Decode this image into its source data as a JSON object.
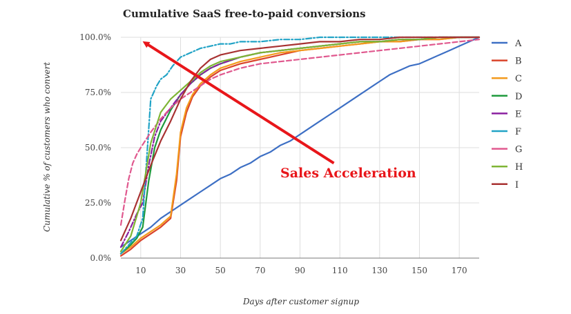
{
  "chart_data": {
    "type": "line",
    "title": "Cumulative SaaS free-to-paid conversions",
    "xlabel": "Days after customer signup",
    "ylabel": "Cumulative % of customers who convert",
    "xlim": [
      0,
      180
    ],
    "ylim": [
      0,
      100
    ],
    "x_ticks": [
      10,
      30,
      50,
      70,
      90,
      110,
      130,
      150,
      170
    ],
    "x_tick_labels": [
      "10",
      "30",
      "50",
      "70",
      "90",
      "110",
      "130",
      "150",
      "170"
    ],
    "y_ticks": [
      0,
      25,
      50,
      75,
      100
    ],
    "y_tick_labels": [
      "0.0%",
      "25.0%",
      "50.0%",
      "75.0%",
      "100.0%"
    ],
    "grid": true,
    "legend": "right",
    "annotation": {
      "text": "Sales Acceleration",
      "color": "#e8161a",
      "arrow_from": [
        107,
        43
      ],
      "arrow_to": [
        13,
        97
      ]
    },
    "series": [
      {
        "name": "A",
        "color": "#3d6fc4",
        "style": "solid",
        "x": [
          0,
          5,
          10,
          15,
          20,
          25,
          30,
          35,
          40,
          45,
          50,
          55,
          60,
          65,
          70,
          75,
          80,
          85,
          90,
          95,
          100,
          105,
          110,
          115,
          120,
          125,
          130,
          135,
          140,
          145,
          150,
          155,
          160,
          165,
          170,
          175,
          180
        ],
        "y": [
          5,
          8,
          11,
          14,
          18,
          21,
          24,
          27,
          30,
          33,
          36,
          38,
          41,
          43,
          46,
          48,
          51,
          53,
          56,
          59,
          62,
          65,
          68,
          71,
          74,
          77,
          80,
          83,
          85,
          87,
          88,
          90,
          92,
          94,
          96,
          98,
          100
        ]
      },
      {
        "name": "B",
        "color": "#d9432a",
        "style": "solid",
        "x": [
          0,
          5,
          10,
          15,
          20,
          25,
          28,
          30,
          33,
          36,
          40,
          45,
          50,
          60,
          70,
          80,
          90,
          100,
          110,
          120,
          130,
          140,
          150,
          160,
          170,
          180
        ],
        "y": [
          1,
          4,
          8,
          11,
          14,
          18,
          35,
          55,
          66,
          73,
          78,
          82,
          85,
          88,
          90,
          92,
          94,
          95,
          96,
          97,
          98,
          98,
          99,
          99,
          100,
          100
        ]
      },
      {
        "name": "C",
        "color": "#f39a1c",
        "style": "solid",
        "x": [
          0,
          5,
          10,
          15,
          20,
          25,
          28,
          30,
          33,
          36,
          40,
          45,
          50,
          60,
          70,
          80,
          90,
          100,
          110,
          120,
          130,
          140,
          150,
          160,
          170,
          180
        ],
        "y": [
          2,
          5,
          9,
          12,
          15,
          19,
          38,
          57,
          68,
          74,
          79,
          83,
          86,
          89,
          91,
          93,
          94,
          95,
          96,
          97,
          98,
          98,
          99,
          99,
          100,
          100
        ]
      },
      {
        "name": "D",
        "color": "#1e9a3c",
        "style": "solid",
        "x": [
          0,
          5,
          8,
          11,
          14,
          17,
          20,
          25,
          30,
          35,
          40,
          45,
          50,
          60,
          70,
          80,
          90,
          100,
          110,
          120,
          130,
          140,
          150,
          160,
          170,
          180
        ],
        "y": [
          2,
          6,
          9,
          14,
          35,
          50,
          58,
          67,
          74,
          79,
          83,
          86,
          88,
          91,
          93,
          94,
          95,
          96,
          97,
          98,
          98,
          99,
          99,
          100,
          100,
          100
        ]
      },
      {
        "name": "E",
        "color": "#8a1fa0",
        "style": "dashdot",
        "x": [
          0,
          4,
          8,
          11,
          14,
          17,
          20,
          25,
          30,
          35,
          40,
          45,
          50,
          60,
          70,
          80,
          90,
          100,
          110,
          120,
          130,
          140,
          150,
          160,
          170,
          180
        ],
        "y": [
          5,
          12,
          20,
          25,
          42,
          55,
          62,
          68,
          74,
          79,
          83,
          86,
          88,
          91,
          93,
          94,
          95,
          96,
          97,
          98,
          98,
          99,
          99,
          100,
          100,
          100
        ]
      },
      {
        "name": "F",
        "color": "#21a3c6",
        "style": "dashdot",
        "x": [
          0,
          4,
          8,
          11,
          13,
          15,
          18,
          20,
          23,
          26,
          30,
          35,
          40,
          45,
          50,
          55,
          60,
          70,
          80,
          90,
          100,
          110,
          120,
          140,
          160,
          180
        ],
        "y": [
          2,
          6,
          10,
          18,
          45,
          72,
          78,
          81,
          83,
          87,
          91,
          93,
          95,
          96,
          97,
          97,
          98,
          98,
          99,
          99,
          100,
          100,
          100,
          100,
          100,
          100
        ]
      },
      {
        "name": "G",
        "color": "#e0588e",
        "style": "dashed",
        "x": [
          0,
          2,
          4,
          6,
          8,
          10,
          15,
          20,
          25,
          30,
          35,
          40,
          45,
          50,
          60,
          70,
          80,
          90,
          100,
          110,
          120,
          130,
          140,
          150,
          160,
          170,
          180
        ],
        "y": [
          15,
          26,
          36,
          43,
          47,
          50,
          57,
          63,
          68,
          72,
          75,
          78,
          81,
          83,
          86,
          88,
          89,
          90,
          91,
          92,
          93,
          94,
          95,
          96,
          97,
          98,
          99
        ]
      },
      {
        "name": "H",
        "color": "#7eb534",
        "style": "solid",
        "x": [
          0,
          5,
          10,
          15,
          20,
          25,
          30,
          35,
          40,
          45,
          50,
          60,
          70,
          80,
          90,
          100,
          110,
          120,
          130,
          140,
          150,
          160,
          170,
          180
        ],
        "y": [
          3,
          10,
          25,
          52,
          66,
          72,
          76,
          80,
          84,
          87,
          89,
          91,
          93,
          94,
          95,
          96,
          97,
          98,
          98,
          99,
          99,
          100,
          100,
          100
        ]
      },
      {
        "name": "I",
        "color": "#a83232",
        "style": "solid",
        "x": [
          0,
          5,
          10,
          15,
          20,
          25,
          30,
          35,
          40,
          45,
          50,
          60,
          70,
          80,
          90,
          100,
          110,
          120,
          130,
          140,
          150,
          160,
          170,
          180
        ],
        "y": [
          8,
          18,
          30,
          42,
          53,
          62,
          72,
          80,
          86,
          90,
          92,
          94,
          95,
          96,
          97,
          98,
          98,
          99,
          99,
          100,
          100,
          100,
          100,
          100
        ]
      }
    ]
  }
}
